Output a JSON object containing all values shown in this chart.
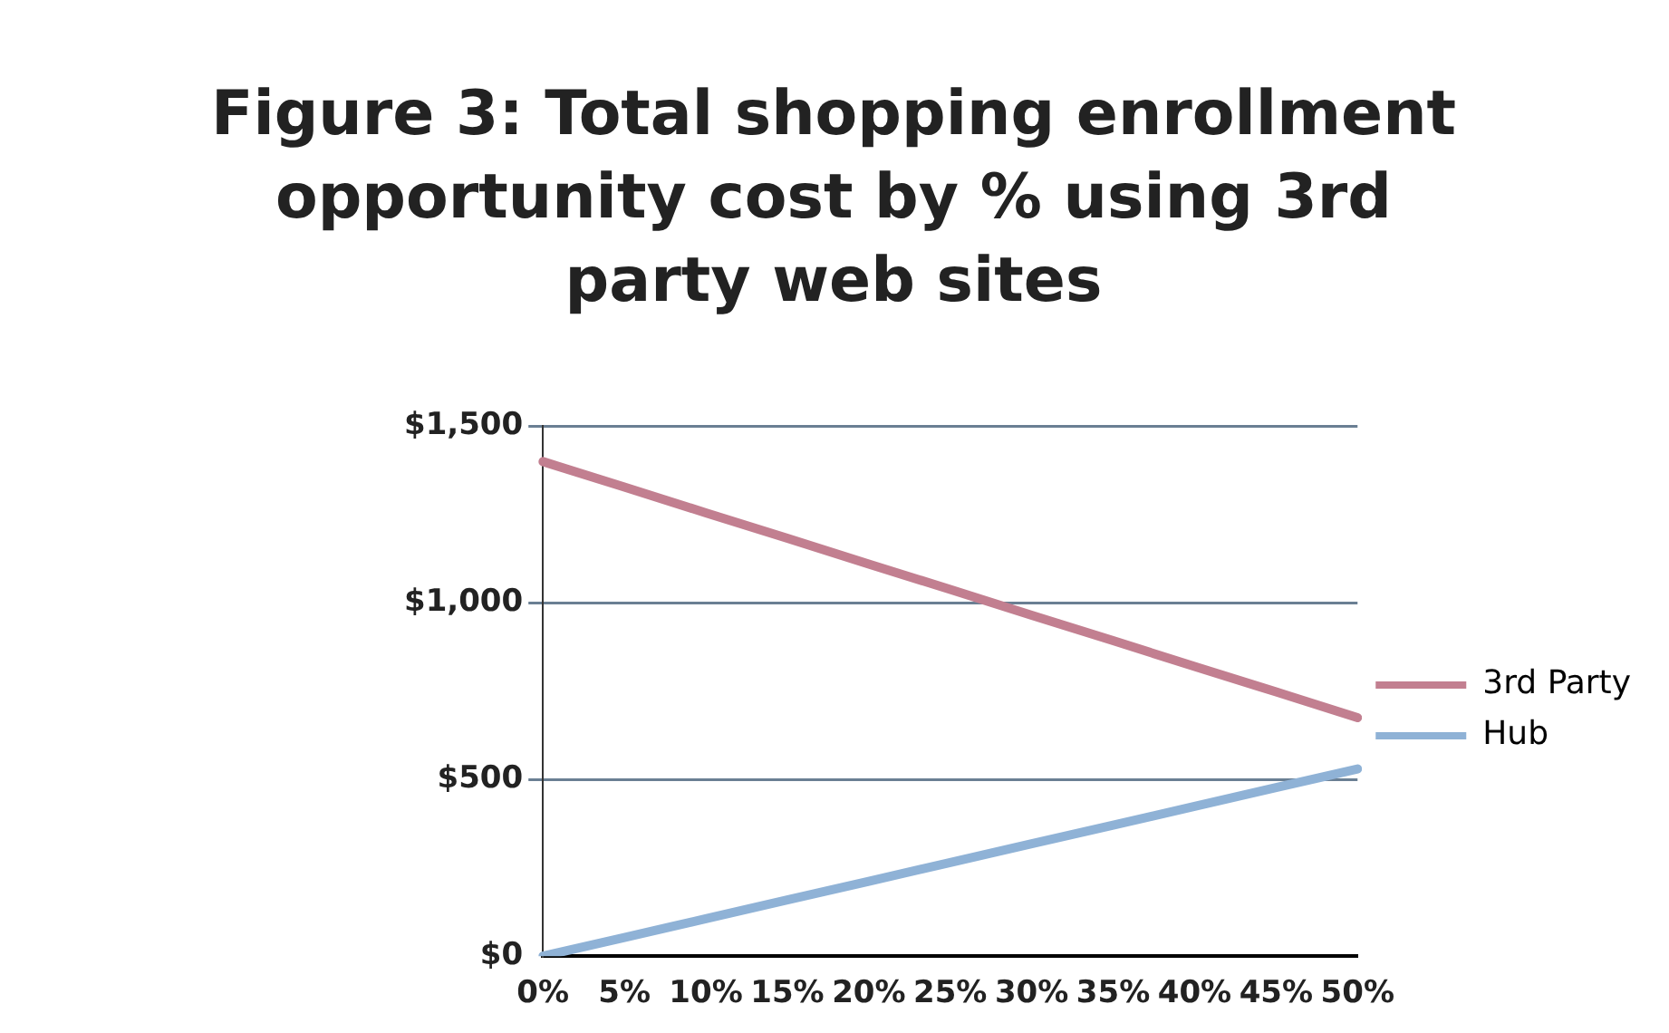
{
  "chart_data": {
    "type": "line",
    "title": "Figure 3: Total shopping enrollment\nopportunity cost by % using 3rd\nparty web sites",
    "categories": [
      "0%",
      "5%",
      "10%",
      "15%",
      "20%",
      "25%",
      "30%",
      "35%",
      "40%",
      "45%",
      "50%"
    ],
    "series": [
      {
        "name": "3rd Party",
        "color": "#c27f90",
        "values": [
          1400,
          1328,
          1255,
          1183,
          1110,
          1038,
          965,
          893,
          820,
          748,
          675
        ]
      },
      {
        "name": "Hub",
        "color": "#8fb2d6",
        "values": [
          0,
          53,
          106,
          159,
          212,
          265,
          318,
          371,
          424,
          477,
          530
        ]
      }
    ],
    "ylim": [
      0,
      1500
    ],
    "yticks": [
      {
        "value": 0,
        "label": "$0"
      },
      {
        "value": 500,
        "label": "$500"
      },
      {
        "value": 1000,
        "label": "$1,000"
      },
      {
        "value": 1500,
        "label": "$1,500"
      }
    ],
    "grid": "y",
    "legend": "right",
    "marker": "none",
    "line_style": "solid"
  }
}
